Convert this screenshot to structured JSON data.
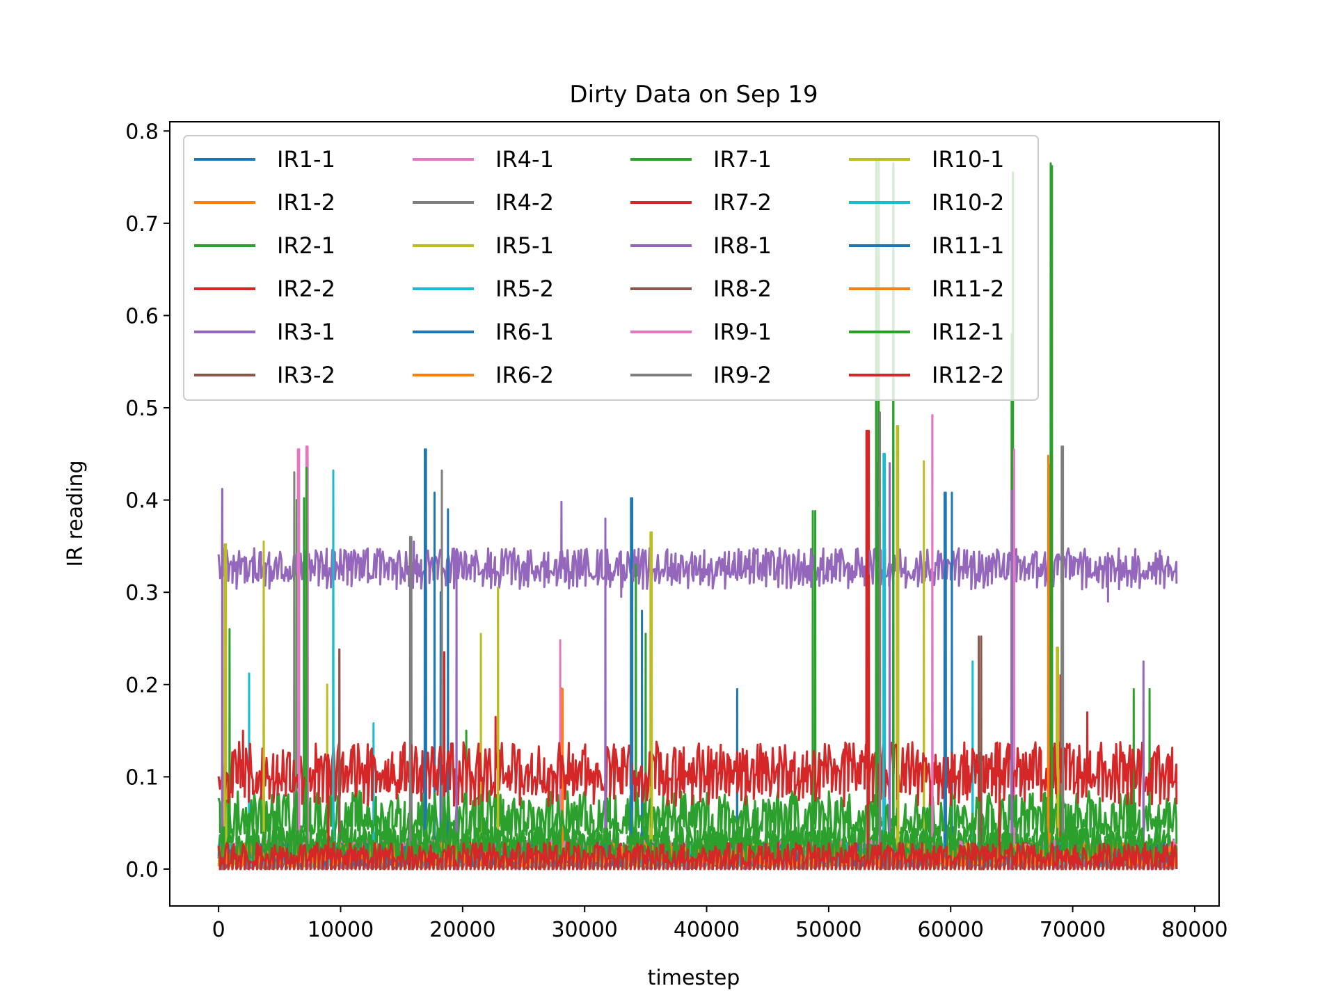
{
  "chart_data": {
    "type": "line",
    "title": "Dirty Data on Sep 19",
    "xlabel": "timestep",
    "ylabel": "IR reading",
    "xlim": [
      -4000,
      82000
    ],
    "ylim": [
      -0.04,
      0.81
    ],
    "x_ticks": [
      0,
      10000,
      20000,
      30000,
      40000,
      50000,
      60000,
      70000,
      80000
    ],
    "x_tick_labels": [
      "0",
      "10000",
      "20000",
      "30000",
      "40000",
      "50000",
      "60000",
      "70000",
      "80000"
    ],
    "y_ticks": [
      0.0,
      0.1,
      0.2,
      0.3,
      0.4,
      0.5,
      0.6,
      0.7,
      0.8
    ],
    "y_tick_labels": [
      "0.0",
      "0.1",
      "0.2",
      "0.3",
      "0.4",
      "0.5",
      "0.6",
      "0.7",
      "0.8"
    ],
    "grid": false,
    "legend_position": "top-left, 4 columns",
    "x_range_of_data": [
      0,
      78500
    ],
    "series": [
      {
        "name": "IR1-1",
        "color": "#1f77b4",
        "baseline": 0.012,
        "spikes": [
          [
            17000,
            0.455
          ],
          [
            18200,
            0.3
          ],
          [
            33900,
            0.402
          ],
          [
            42500,
            0.195
          ],
          [
            59500,
            0.408
          ]
        ]
      },
      {
        "name": "IR1-2",
        "color": "#ff7f0e",
        "baseline": 0.012,
        "spikes": [
          [
            28100,
            0.196
          ],
          [
            68300,
            0.448
          ]
        ]
      },
      {
        "name": "IR2-1",
        "color": "#2ca02c",
        "baseline": 0.035,
        "spikes": [
          [
            6400,
            0.4
          ],
          [
            7300,
            0.435
          ],
          [
            35000,
            0.255
          ],
          [
            48700,
            0.388
          ],
          [
            53900,
            0.77
          ],
          [
            55300,
            0.765
          ],
          [
            65100,
            0.755
          ],
          [
            68200,
            0.762
          ],
          [
            75000,
            0.195
          ]
        ]
      },
      {
        "name": "IR2-2",
        "color": "#d62728",
        "baseline": 0.012,
        "spikes": [
          [
            18500,
            0.235
          ],
          [
            53300,
            0.475
          ],
          [
            69000,
            0.21
          ]
        ]
      },
      {
        "name": "IR3-1",
        "color": "#9467bd",
        "baseline": 0.33,
        "spikes": [
          [
            300,
            0.412
          ],
          [
            16000,
            0.355
          ],
          [
            28100,
            0.398
          ],
          [
            33000,
            0.295
          ],
          [
            54000,
            0.44
          ],
          [
            67400,
            0.33
          ],
          [
            72900,
            0.29
          ]
        ]
      },
      {
        "name": "IR3-2",
        "color": "#8c564b",
        "baseline": 0.01,
        "spikes": [
          [
            9900,
            0.238
          ],
          [
            62300,
            0.252
          ]
        ]
      },
      {
        "name": "IR4-1",
        "color": "#e377c2",
        "baseline": 0.02,
        "spikes": [
          [
            6500,
            0.455
          ],
          [
            7200,
            0.458
          ],
          [
            28000,
            0.248
          ],
          [
            58500,
            0.492
          ],
          [
            65200,
            0.455
          ]
        ]
      },
      {
        "name": "IR4-2",
        "color": "#7f7f7f",
        "baseline": 0.0,
        "spikes": [
          [
            6200,
            0.43
          ],
          [
            15800,
            0.36
          ],
          [
            18300,
            0.432
          ],
          [
            54200,
            0.495
          ],
          [
            69100,
            0.458
          ]
        ]
      },
      {
        "name": "IR5-1",
        "color": "#bcbd22",
        "baseline": 0.01,
        "spikes": [
          [
            600,
            0.352
          ],
          [
            3700,
            0.355
          ],
          [
            8900,
            0.2
          ],
          [
            21500,
            0.255
          ],
          [
            22900,
            0.305
          ],
          [
            35400,
            0.365
          ],
          [
            55600,
            0.48
          ],
          [
            57800,
            0.442
          ],
          [
            68700,
            0.24
          ]
        ]
      },
      {
        "name": "IR5-2",
        "color": "#17becf",
        "baseline": 0.01,
        "spikes": [
          [
            2500,
            0.212
          ],
          [
            9400,
            0.432
          ],
          [
            12700,
            0.158
          ],
          [
            54600,
            0.45
          ],
          [
            61800,
            0.225
          ]
        ]
      },
      {
        "name": "IR6-1",
        "color": "#1f77b4",
        "baseline": 0.01,
        "spikes": [
          [
            17700,
            0.408
          ],
          [
            18800,
            0.39
          ],
          [
            34700,
            0.28
          ],
          [
            60100,
            0.408
          ]
        ]
      },
      {
        "name": "IR6-2",
        "color": "#ff7f0e",
        "baseline": 0.01,
        "spikes": [
          [
            28200,
            0.195
          ],
          [
            68100,
            0.438
          ]
        ]
      },
      {
        "name": "IR7-1",
        "color": "#2ca02c",
        "baseline": 0.06,
        "spikes": [
          [
            900,
            0.26
          ],
          [
            7000,
            0.402
          ],
          [
            20300,
            0.15
          ],
          [
            34200,
            0.33
          ],
          [
            48900,
            0.388
          ],
          [
            54100,
            0.77
          ],
          [
            65000,
            0.58
          ],
          [
            68200,
            0.765
          ],
          [
            76300,
            0.195
          ]
        ]
      },
      {
        "name": "IR7-2",
        "color": "#d62728",
        "baseline": 0.11,
        "spikes": [
          [
            2000,
            0.15
          ],
          [
            22700,
            0.165
          ],
          [
            53100,
            0.475
          ],
          [
            71200,
            0.17
          ]
        ]
      },
      {
        "name": "IR8-1",
        "color": "#9467bd",
        "baseline": 0.0,
        "spikes": [
          [
            300,
            0.412
          ],
          [
            19500,
            0.342
          ],
          [
            31700,
            0.38
          ],
          [
            55000,
            0.44
          ],
          [
            65000,
            0.41
          ],
          [
            75800,
            0.225
          ]
        ]
      },
      {
        "name": "IR8-2",
        "color": "#8c564b",
        "baseline": 0.0,
        "spikes": [
          [
            9900,
            0.238
          ],
          [
            62500,
            0.252
          ]
        ]
      },
      {
        "name": "IR9-1",
        "color": "#e377c2",
        "baseline": 0.02,
        "spikes": [
          [
            6600,
            0.455
          ],
          [
            7300,
            0.458
          ],
          [
            58500,
            0.492
          ]
        ]
      },
      {
        "name": "IR9-2",
        "color": "#7f7f7f",
        "baseline": 0.0,
        "spikes": [
          [
            15700,
            0.36
          ],
          [
            54200,
            0.495
          ],
          [
            69200,
            0.458
          ]
        ]
      },
      {
        "name": "IR10-1",
        "color": "#bcbd22",
        "baseline": 0.01,
        "spikes": [
          [
            500,
            0.352
          ],
          [
            3700,
            0.355
          ],
          [
            22900,
            0.305
          ],
          [
            35500,
            0.365
          ],
          [
            55700,
            0.48
          ],
          [
            68800,
            0.24
          ]
        ]
      },
      {
        "name": "IR10-2",
        "color": "#17becf",
        "baseline": 0.01,
        "spikes": [
          [
            9400,
            0.432
          ],
          [
            54500,
            0.45
          ]
        ]
      },
      {
        "name": "IR11-1",
        "color": "#1f77b4",
        "baseline": 0.01,
        "spikes": [
          [
            16900,
            0.455
          ],
          [
            33800,
            0.402
          ],
          [
            59600,
            0.408
          ]
        ]
      },
      {
        "name": "IR11-2",
        "color": "#ff7f0e",
        "baseline": 0.01,
        "spikes": [
          [
            68000,
            0.448
          ]
        ]
      },
      {
        "name": "IR12-1",
        "color": "#2ca02c",
        "baseline": 0.035,
        "spikes": [
          [
            7200,
            0.435
          ],
          [
            53900,
            0.77
          ],
          [
            55300,
            0.765
          ],
          [
            68300,
            0.762
          ]
        ]
      },
      {
        "name": "IR12-2",
        "color": "#d62728",
        "baseline": 0.012,
        "spikes": [
          [
            9000,
            0.11
          ],
          [
            53200,
            0.475
          ],
          [
            64000,
            0.12
          ]
        ]
      }
    ]
  }
}
